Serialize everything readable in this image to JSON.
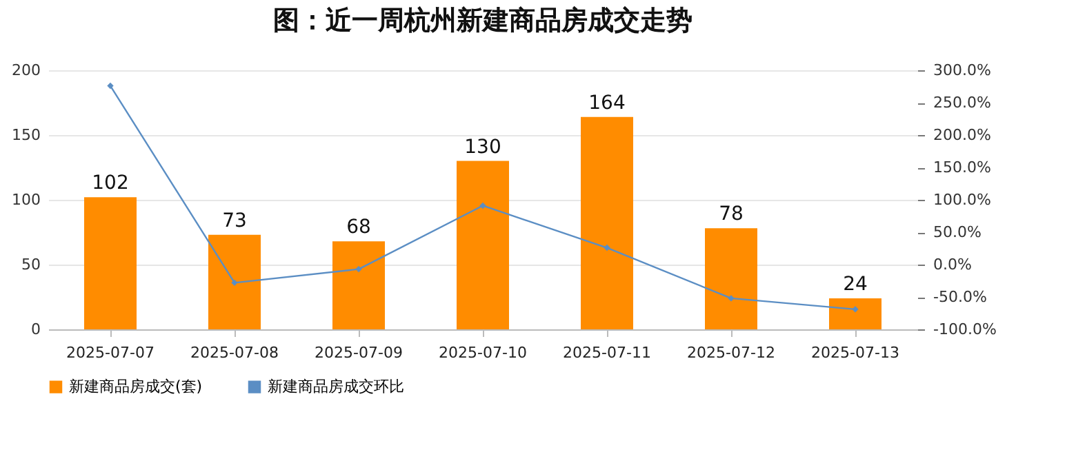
{
  "chart_data": {
    "type": "bar",
    "title": "图：近一周杭州新建商品房成交走势",
    "categories": [
      "2025-07-07",
      "2025-07-08",
      "2025-07-09",
      "2025-07-10",
      "2025-07-11",
      "2025-07-12",
      "2025-07-13"
    ],
    "series": [
      {
        "name": "新建商品房成交(套)",
        "color": "#ff8c00",
        "values": [
          102,
          73,
          68,
          130,
          164,
          78,
          24
        ],
        "value_labels": [
          "102",
          "73",
          "68",
          "130",
          "164",
          "78",
          "24"
        ]
      },
      {
        "name": "新建商品房成交环比",
        "type": "line",
        "axis": "y2",
        "color": "#5b8ec4",
        "marker": "diamond",
        "values": [
          276,
          -28,
          -7,
          91,
          26,
          -52,
          -69
        ]
      }
    ],
    "ylim": [
      0,
      200
    ],
    "yticks": [
      0,
      50,
      100,
      150,
      200
    ],
    "y2lim": [
      -100,
      300
    ],
    "y2ticks": [
      {
        "value": -100,
        "label": "-100.0%"
      },
      {
        "value": -50,
        "label": "-50.0%"
      },
      {
        "value": 0,
        "label": "0.0%"
      },
      {
        "value": 50,
        "label": "50.0%"
      },
      {
        "value": 100,
        "label": "100.0%"
      },
      {
        "value": 150,
        "label": "150.0%"
      },
      {
        "value": 200,
        "label": "200.0%"
      },
      {
        "value": 250,
        "label": "250.0%"
      },
      {
        "value": 300,
        "label": "300.0%"
      }
    ],
    "grid": "y",
    "legend": "bottom"
  }
}
